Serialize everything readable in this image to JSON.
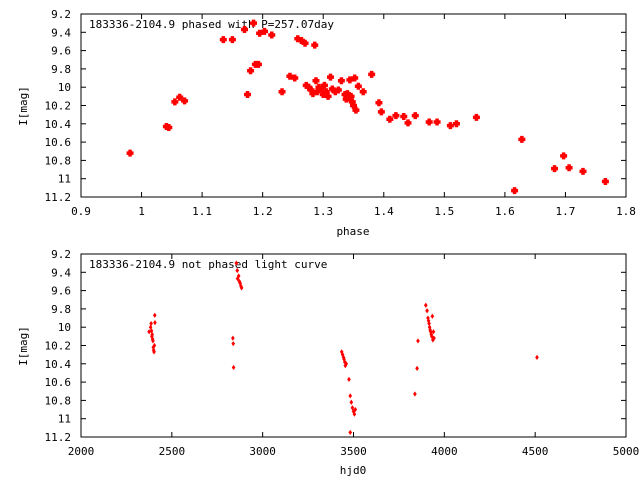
{
  "chart_data": [
    {
      "type": "scatter",
      "title": "183336-2104.9 phased with P=257.07day",
      "xlabel": "phase",
      "ylabel": "I[mag]",
      "xlim": [
        0.9,
        1.8
      ],
      "ylim": [
        11.2,
        9.2
      ],
      "y_inverted": true,
      "grid": false,
      "marker_color": "#ff0000",
      "xticks": [
        "0.9",
        "1",
        "1.1",
        "1.2",
        "1.3",
        "1.4",
        "1.5",
        "1.6",
        "1.7",
        "1.8"
      ],
      "yticks": [
        "9.2",
        "9.4",
        "9.6",
        "9.8",
        "10",
        "10.2",
        "10.4",
        "10.6",
        "10.8",
        "11",
        "11.2"
      ],
      "points": [
        [
          0.981,
          10.72
        ],
        [
          1.041,
          10.43
        ],
        [
          1.045,
          10.44
        ],
        [
          1.055,
          10.16
        ],
        [
          1.063,
          10.11
        ],
        [
          1.071,
          10.15
        ],
        [
          1.135,
          9.48
        ],
        [
          1.15,
          9.48
        ],
        [
          1.17,
          9.37
        ],
        [
          1.175,
          10.08
        ],
        [
          1.18,
          9.82
        ],
        [
          1.185,
          9.3
        ],
        [
          1.188,
          9.75
        ],
        [
          1.193,
          9.75
        ],
        [
          1.195,
          9.41
        ],
        [
          1.203,
          9.39
        ],
        [
          1.215,
          9.43
        ],
        [
          1.232,
          10.05
        ],
        [
          1.245,
          9.88
        ],
        [
          1.253,
          9.9
        ],
        [
          1.258,
          9.47
        ],
        [
          1.264,
          9.49
        ],
        [
          1.27,
          9.52
        ],
        [
          1.272,
          9.98
        ],
        [
          1.276,
          10.0
        ],
        [
          1.28,
          10.03
        ],
        [
          1.283,
          10.07
        ],
        [
          1.286,
          9.54
        ],
        [
          1.288,
          9.93
        ],
        [
          1.29,
          10.05
        ],
        [
          1.293,
          10.0
        ],
        [
          1.296,
          10.02
        ],
        [
          1.3,
          10.08
        ],
        [
          1.302,
          9.98
        ],
        [
          1.305,
          10.05
        ],
        [
          1.308,
          10.1
        ],
        [
          1.312,
          9.89
        ],
        [
          1.315,
          10.02
        ],
        [
          1.32,
          10.05
        ],
        [
          1.325,
          10.03
        ],
        [
          1.33,
          9.93
        ],
        [
          1.336,
          10.08
        ],
        [
          1.338,
          10.13
        ],
        [
          1.34,
          10.07
        ],
        [
          1.342,
          10.12
        ],
        [
          1.344,
          9.92
        ],
        [
          1.346,
          10.1
        ],
        [
          1.348,
          10.16
        ],
        [
          1.35,
          10.2
        ],
        [
          1.352,
          9.9
        ],
        [
          1.354,
          10.25
        ],
        [
          1.358,
          9.99
        ],
        [
          1.366,
          10.05
        ],
        [
          1.38,
          9.86
        ],
        [
          1.392,
          10.17
        ],
        [
          1.396,
          10.27
        ],
        [
          1.41,
          10.35
        ],
        [
          1.42,
          10.31
        ],
        [
          1.433,
          10.32
        ],
        [
          1.44,
          10.39
        ],
        [
          1.452,
          10.31
        ],
        [
          1.475,
          10.38
        ],
        [
          1.488,
          10.38
        ],
        [
          1.51,
          10.42
        ],
        [
          1.52,
          10.4
        ],
        [
          1.553,
          10.33
        ],
        [
          1.616,
          11.13
        ],
        [
          1.628,
          10.57
        ],
        [
          1.682,
          10.89
        ],
        [
          1.697,
          10.75
        ],
        [
          1.706,
          10.88
        ],
        [
          1.729,
          10.92
        ],
        [
          1.766,
          11.03
        ]
      ]
    },
    {
      "type": "scatter",
      "title": "183336-2104.9 not phased light curve",
      "xlabel": "hjd0",
      "ylabel": "I[mag]",
      "xlim": [
        2000,
        5000
      ],
      "ylim": [
        11.2,
        9.2
      ],
      "y_inverted": true,
      "grid": false,
      "marker_color": "#ff0000",
      "xticks": [
        "2000",
        "2500",
        "3000",
        "3500",
        "4000",
        "4500",
        "5000"
      ],
      "yticks": [
        "9.2",
        "9.4",
        "9.6",
        "9.8",
        "10",
        "10.2",
        "10.4",
        "10.6",
        "10.8",
        "11",
        "11.2"
      ],
      "points": [
        [
          2375,
          10.05
        ],
        [
          2383,
          10.0
        ],
        [
          2386,
          9.96
        ],
        [
          2388,
          10.04
        ],
        [
          2390,
          10.1
        ],
        [
          2392,
          10.08
        ],
        [
          2394,
          10.13
        ],
        [
          2396,
          10.15
        ],
        [
          2398,
          10.22
        ],
        [
          2400,
          10.25
        ],
        [
          2402,
          10.27
        ],
        [
          2404,
          10.2
        ],
        [
          2406,
          9.87
        ],
        [
          2407,
          9.95
        ],
        [
          2836,
          10.12
        ],
        [
          2838,
          10.18
        ],
        [
          2840,
          10.44
        ],
        [
          2855,
          9.3
        ],
        [
          2860,
          9.38
        ],
        [
          2862,
          9.47
        ],
        [
          2868,
          9.44
        ],
        [
          2872,
          9.5
        ],
        [
          2876,
          9.52
        ],
        [
          2880,
          9.55
        ],
        [
          2884,
          9.57
        ],
        [
          3435,
          10.27
        ],
        [
          3440,
          10.3
        ],
        [
          3445,
          10.33
        ],
        [
          3448,
          10.35
        ],
        [
          3452,
          10.38
        ],
        [
          3455,
          10.42
        ],
        [
          3460,
          10.4
        ],
        [
          3475,
          10.57
        ],
        [
          3482,
          10.75
        ],
        [
          3488,
          10.82
        ],
        [
          3494,
          10.88
        ],
        [
          3500,
          10.92
        ],
        [
          3505,
          10.95
        ],
        [
          3510,
          10.9
        ],
        [
          3482,
          11.15
        ],
        [
          3838,
          10.73
        ],
        [
          3850,
          10.45
        ],
        [
          3855,
          10.15
        ],
        [
          3898,
          9.76
        ],
        [
          3905,
          9.82
        ],
        [
          3910,
          9.9
        ],
        [
          3913,
          9.93
        ],
        [
          3916,
          9.96
        ],
        [
          3919,
          10.0
        ],
        [
          3922,
          10.03
        ],
        [
          3925,
          10.05
        ],
        [
          3928,
          10.08
        ],
        [
          3931,
          10.1
        ],
        [
          3934,
          9.88
        ],
        [
          3937,
          10.14
        ],
        [
          3940,
          10.05
        ],
        [
          3943,
          10.12
        ],
        [
          4510,
          10.33
        ]
      ]
    }
  ]
}
